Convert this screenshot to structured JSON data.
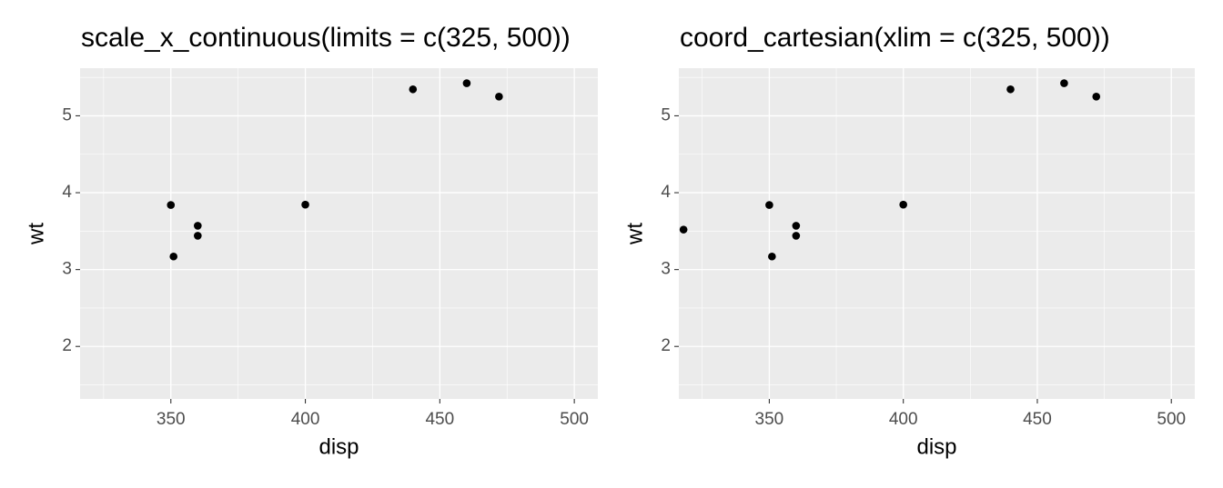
{
  "chart_data": [
    {
      "type": "scatter",
      "title": "scale_x_continuous(limits = c(325, 500))",
      "x_label": "disp",
      "y_label": "wt",
      "x": [
        350,
        351,
        360,
        360,
        400,
        440,
        460,
        472
      ],
      "y": [
        3.84,
        3.17,
        3.57,
        3.44,
        3.845,
        5.345,
        5.424,
        5.25
      ],
      "color": "#000000",
      "xlim": [
        316.25,
        508.75
      ],
      "xticks": [
        350,
        400,
        450,
        500
      ],
      "ylim": [
        1.317,
        5.62
      ],
      "yticks": [
        2,
        3,
        4,
        5
      ],
      "grid": true
    },
    {
      "type": "scatter",
      "title": "coord_cartesian(xlim = c(325, 500))",
      "x_label": "disp",
      "y_label": "wt",
      "x": [
        318,
        350,
        351,
        360,
        360,
        400,
        440,
        460,
        472
      ],
      "y": [
        3.52,
        3.84,
        3.17,
        3.57,
        3.44,
        3.845,
        5.345,
        5.424,
        5.25
      ],
      "color": "#000000",
      "xlim": [
        316.25,
        508.75
      ],
      "xticks": [
        350,
        400,
        450,
        500
      ],
      "ylim": [
        1.317,
        5.62
      ],
      "yticks": [
        2,
        3,
        4,
        5
      ],
      "grid": true
    }
  ]
}
